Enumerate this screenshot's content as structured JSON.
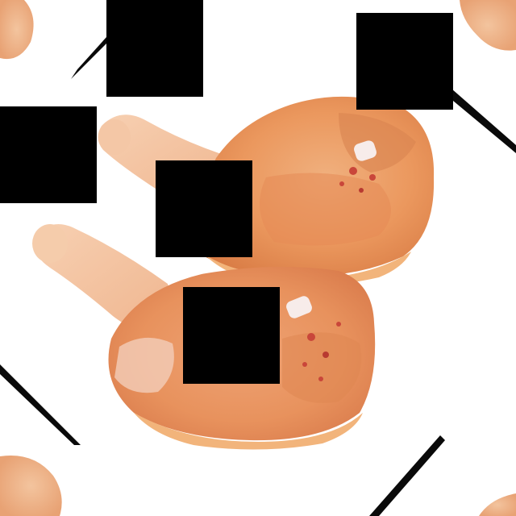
{
  "photo": {
    "subject": "raw-chicken-leg-quarters",
    "background_color": "#ffffff",
    "meat_color": "#e9955d",
    "skin_color": "#f3c29a",
    "bone_color": "#f7ecea",
    "occlusion_color": "#000000",
    "border_streak_color": "#0a0a0a"
  }
}
